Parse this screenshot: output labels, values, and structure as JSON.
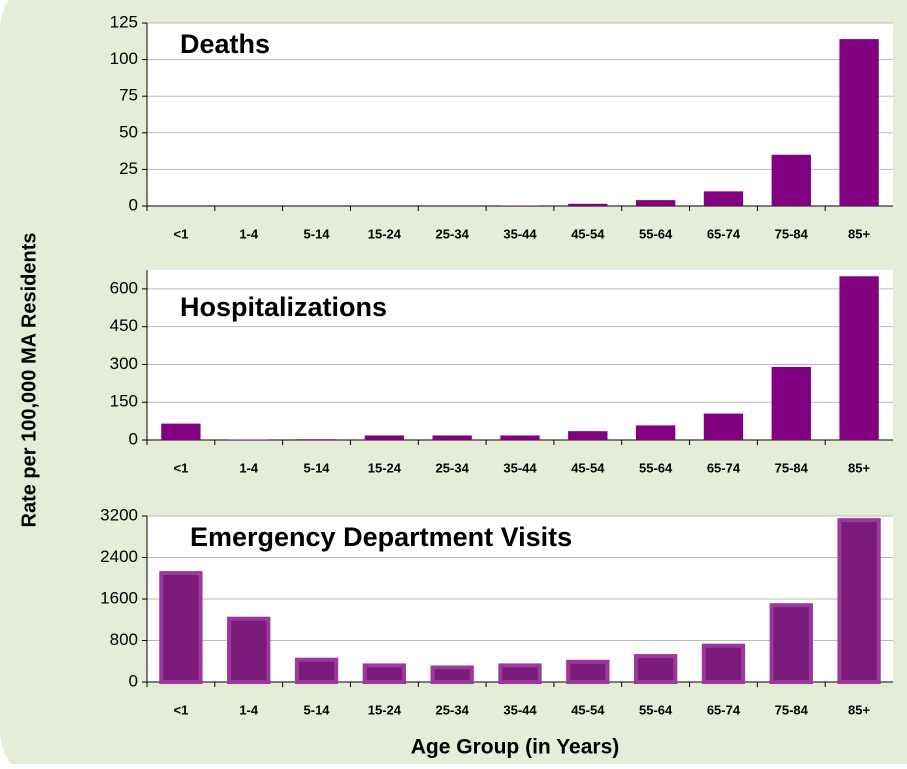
{
  "y_axis_label": "Rate per 100,000 MA Residents",
  "x_axis_label": "Age  Group (in Years)",
  "chart_data": [
    {
      "type": "bar",
      "title": "Deaths",
      "color": "#800080",
      "categories": [
        "<1",
        "1-4",
        "5-14",
        "15-24",
        "25-34",
        "35-44",
        "45-54",
        "55-64",
        "65-74",
        "75-84",
        "85+"
      ],
      "values": [
        0,
        0,
        0,
        0,
        0,
        0.3,
        1.5,
        4,
        10,
        35,
        114
      ],
      "ylim": [
        0,
        125
      ],
      "yticks": [
        0,
        25,
        50,
        75,
        100,
        125
      ],
      "grid": true
    },
    {
      "type": "bar",
      "title": "Hospitalizations",
      "color": "#800080",
      "categories": [
        "<1",
        "1-4",
        "5-14",
        "15-24",
        "25-34",
        "35-44",
        "45-54",
        "55-64",
        "65-74",
        "75-84",
        "85+"
      ],
      "values": [
        65,
        2,
        3,
        18,
        18,
        18,
        35,
        58,
        105,
        290,
        650
      ],
      "ylim": [
        0,
        675
      ],
      "yticks": [
        0,
        150,
        300,
        450,
        600
      ],
      "grid": true
    },
    {
      "type": "bar",
      "title": "Emergency Department Visits",
      "color": "#7a1a7a",
      "categories": [
        "<1",
        "1-4",
        "5-14",
        "15-24",
        "25-34",
        "35-44",
        "45-54",
        "55-64",
        "65-74",
        "75-84",
        "85+"
      ],
      "values": [
        2100,
        1220,
        430,
        320,
        280,
        320,
        390,
        500,
        700,
        1480,
        3120
      ],
      "ylim": [
        0,
        3200
      ],
      "yticks": [
        0,
        800,
        1600,
        2400,
        3200
      ],
      "grid": true
    }
  ]
}
